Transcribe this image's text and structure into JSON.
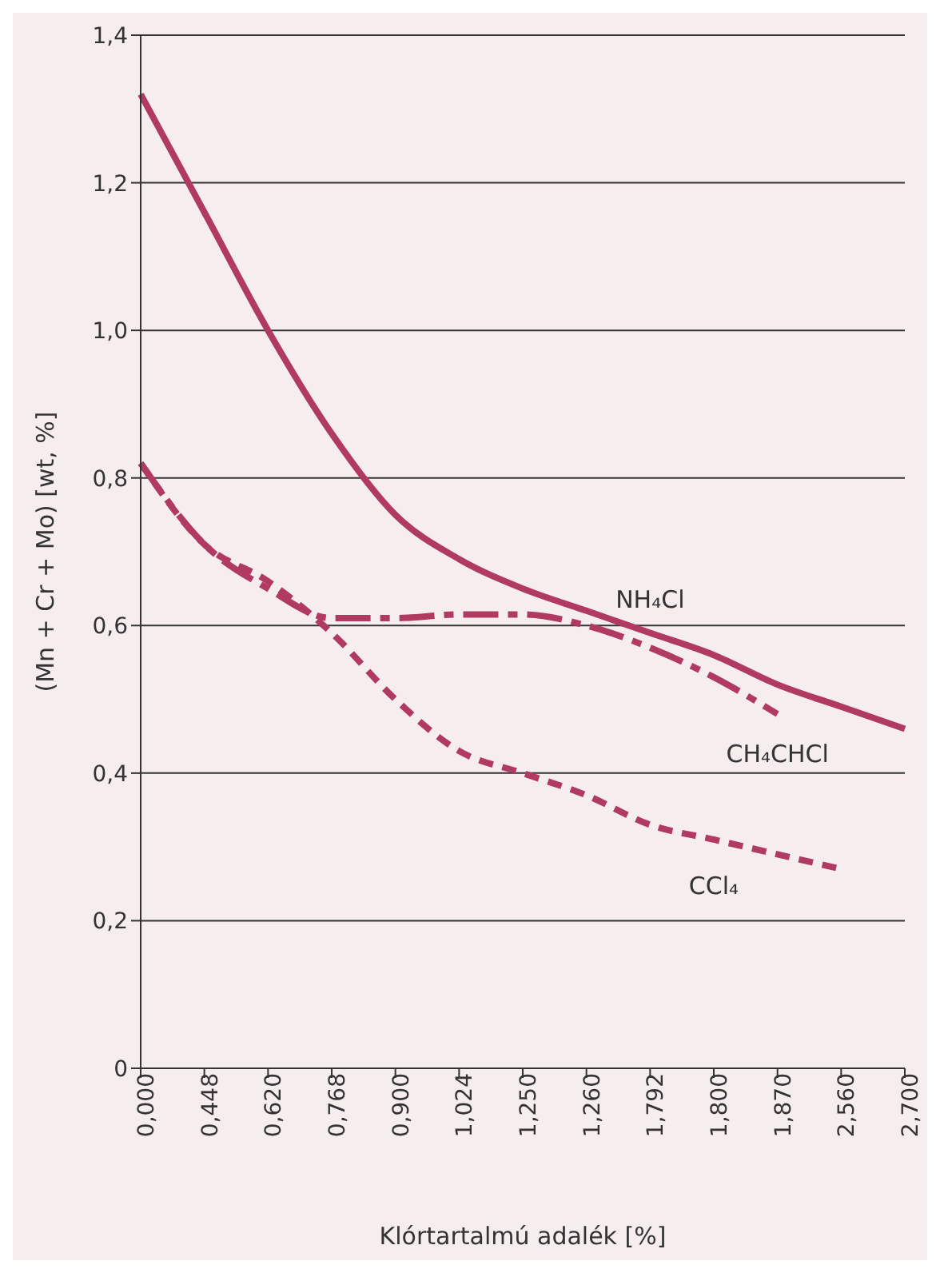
{
  "chart_data": {
    "type": "line",
    "xlabel": "Klórtartalmú adalék  [%]",
    "ylabel": "(Mn + Cr + Mo)  [wt, %]",
    "categories": [
      "0,000",
      "0,448",
      "0,620",
      "0,768",
      "0,900",
      "1,024",
      "1,250",
      "1,260",
      "1,792",
      "1,800",
      "1,870",
      "2,560",
      "2,700"
    ],
    "series": [
      {
        "name": "NH₄Cl",
        "color": "#b03a62",
        "line_style": "solid",
        "values": [
          1.32,
          1.16,
          1.0,
          0.86,
          0.75,
          0.69,
          0.65,
          0.62,
          0.59,
          0.56,
          0.52,
          0.49,
          0.46
        ]
      },
      {
        "name": "CH₄CHCl",
        "color": "#b03a62",
        "line_style": "dashdot",
        "values": [
          0.82,
          0.71,
          0.65,
          0.61,
          0.61,
          0.615,
          0.615,
          0.6,
          0.57,
          0.53,
          0.48,
          null,
          null
        ]
      },
      {
        "name": "CCl₄",
        "color": "#b03a62",
        "line_style": "dashed",
        "values": [
          0.82,
          0.71,
          0.66,
          0.59,
          0.5,
          0.43,
          0.4,
          0.37,
          0.33,
          0.31,
          0.29,
          0.27,
          null
        ]
      }
    ],
    "ylim": [
      0,
      1.4
    ],
    "yticks": [
      {
        "value": 0,
        "label": "0"
      },
      {
        "value": 0.2,
        "label": "0,2"
      },
      {
        "value": 0.4,
        "label": "0,4"
      },
      {
        "value": 0.6,
        "label": "0,6"
      },
      {
        "value": 0.8,
        "label": "0,8"
      },
      {
        "value": 1.0,
        "label": "1,0"
      },
      {
        "value": 1.2,
        "label": "1,2"
      },
      {
        "value": 1.4,
        "label": "1,4"
      }
    ],
    "grid": "y",
    "legend": false,
    "marker": "none"
  }
}
